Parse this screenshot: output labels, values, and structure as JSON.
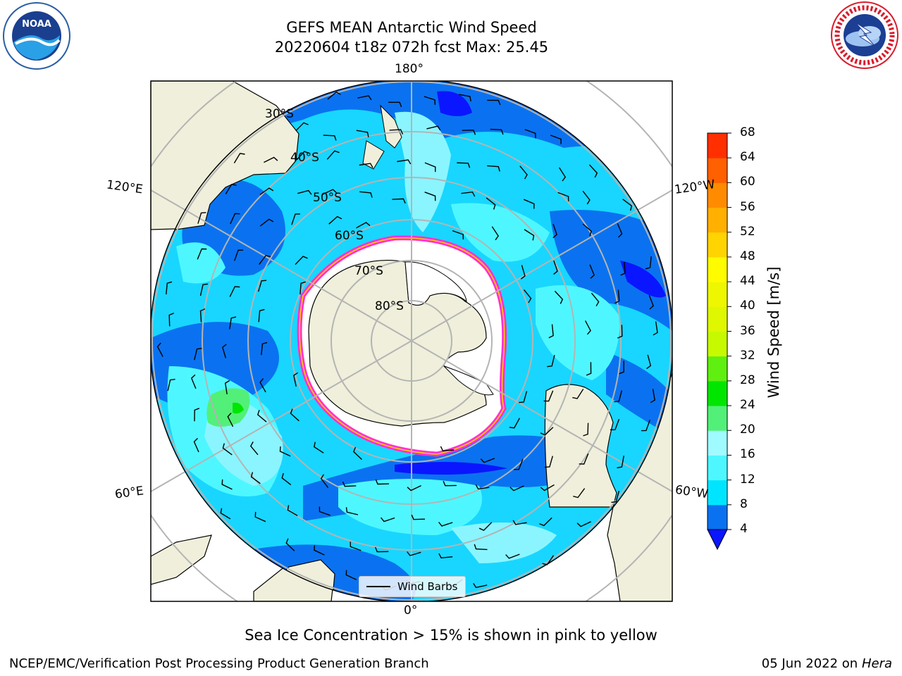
{
  "title_line1": "GEFS MEAN Antarctic Wind Speed",
  "title_line2": "20220604 t18z 072h fcst   Max: 25.45",
  "logos": {
    "noaa": {
      "text": "NOAA",
      "ring_text": "NATIONAL OCEANIC AND ATMOSPHERIC ADMINISTRATION · U.S. DEPARTMENT OF COMMERCE"
    },
    "nws": {
      "ring_text": "NATIONAL WEATHER SERVICE"
    }
  },
  "map": {
    "projection": "south-polar-stereographic",
    "lon_labels": {
      "top": "180°",
      "bottom": "0°",
      "left_upper": "120°E",
      "left_lower": "60°E",
      "right_upper": "120°W",
      "right_lower": "60°W"
    },
    "lat_labels": [
      "30°S",
      "40°S",
      "50°S",
      "60°S",
      "70°S",
      "80°S"
    ],
    "colors": {
      "land": "#efefdb",
      "ocean_low": "#0a72f0",
      "ocean_mid": "#18d6ff",
      "ocean_high": "#8af5ff",
      "ice": "#ffffff",
      "ice_edge": "#ff33cc",
      "grid": "#b4b4b4"
    }
  },
  "legend": {
    "label": "Wind Barbs"
  },
  "colorbar": {
    "title": "Wind Speed [m/s]",
    "ticks": [
      "4",
      "8",
      "12",
      "16",
      "20",
      "24",
      "28",
      "32",
      "36",
      "40",
      "44",
      "48",
      "52",
      "56",
      "60",
      "64",
      "68"
    ],
    "colors": [
      "#0a72f0",
      "#00e5ff",
      "#4ef7ff",
      "#9ffbff",
      "#52f078",
      "#00e600",
      "#5fef10",
      "#c7fa00",
      "#dff700",
      "#eef700",
      "#fffc00",
      "#ffd400",
      "#ffb000",
      "#ff8c00",
      "#ff6000",
      "#ff2f00"
    ],
    "under_color": "#0a16ff"
  },
  "note": "Sea Ice Concentration > 15% is shown in pink to yellow",
  "footer": {
    "left": "NCEP/EMC/Verification Post Processing Product Generation Branch",
    "date": "05 Jun 2022 on",
    "machine": "Hera"
  }
}
